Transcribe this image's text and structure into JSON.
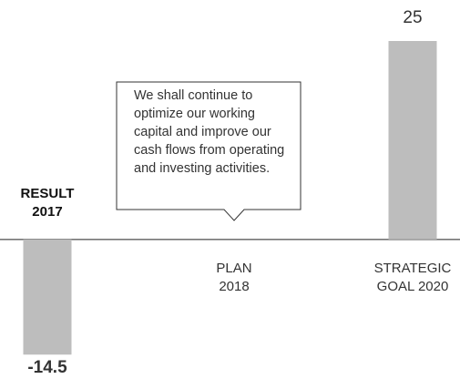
{
  "chart_data": {
    "type": "bar",
    "categories": [
      "RESULT\n2017",
      "PLAN\n2018",
      "STRATEGIC\nGOAL 2020"
    ],
    "values": [
      -14.5,
      null,
      25
    ],
    "value_labels": [
      "-14.5",
      null,
      "25"
    ],
    "color": "#bdbdbd",
    "ylim": [
      -17,
      25
    ],
    "annotation": "We shall continue to\noptimize our working\ncapital and improve our\ncash flows from operating\nand investing activities."
  }
}
